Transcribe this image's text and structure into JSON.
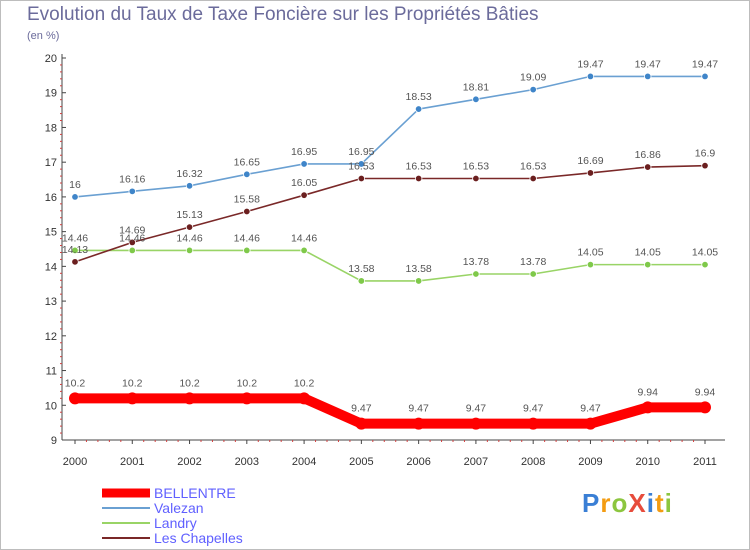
{
  "title": "Evolution du Taux de Taxe Foncière sur les Propriétés Bâties",
  "unit": "(en %)",
  "logo": {
    "text": "ProXiti",
    "letters": [
      {
        "ch": "P",
        "color": "#3a7fd5"
      },
      {
        "ch": "r",
        "color": "#f39c12"
      },
      {
        "ch": "o",
        "color": "#8cc63f"
      },
      {
        "ch": "X",
        "color": "#e74c3c"
      },
      {
        "ch": "i",
        "color": "#3a7fd5"
      },
      {
        "ch": "t",
        "color": "#f39c12"
      },
      {
        "ch": "i",
        "color": "#8cc63f"
      }
    ]
  },
  "chart_data": {
    "type": "line",
    "title": "Evolution du Taux de Taxe Foncière sur les Propriétés Bâties",
    "ylabel": "(en %)",
    "xlabel": "",
    "ylim": [
      9,
      20
    ],
    "yticks": [
      "9",
      "10",
      "11",
      "12",
      "13",
      "14",
      "15",
      "16",
      "17",
      "18",
      "19",
      "20"
    ],
    "categories": [
      "2000",
      "2001",
      "2002",
      "2003",
      "2004",
      "2005",
      "2006",
      "2007",
      "2008",
      "2009",
      "2010",
      "2011"
    ],
    "grid": false,
    "legend_position": "bottom-left",
    "series": [
      {
        "name": "BELLENTRE",
        "color": "#ff0000",
        "label_color": "#6060ff",
        "bold": true,
        "values": [
          10.2,
          10.2,
          10.2,
          10.2,
          10.2,
          9.47,
          9.47,
          9.47,
          9.47,
          9.47,
          9.94,
          9.94
        ],
        "labels": [
          "10.2",
          "10.2",
          "10.2",
          "10.2",
          "10.2",
          "9.47",
          "9.47",
          "9.47",
          "9.47",
          "9.47",
          "9.94",
          "9.94"
        ]
      },
      {
        "name": "Valezan",
        "color": "#6aa0d2",
        "marker": "#3f85c9",
        "label_color": "#6060ff",
        "bold": false,
        "values": [
          16,
          16.16,
          16.32,
          16.65,
          16.95,
          16.95,
          18.53,
          18.81,
          19.09,
          19.47,
          19.47,
          19.47
        ],
        "labels": [
          "16",
          "16.16",
          "16.32",
          "16.65",
          "16.95",
          "16.95",
          "18.53",
          "18.81",
          "19.09",
          "19.47",
          "19.47",
          "19.47"
        ]
      },
      {
        "name": "Landry",
        "color": "#99d466",
        "marker": "#7fc94a",
        "label_color": "#6060ff",
        "bold": false,
        "values": [
          14.46,
          14.46,
          14.46,
          14.46,
          14.46,
          13.58,
          13.58,
          13.78,
          13.78,
          14.05,
          14.05,
          14.05
        ],
        "labels": [
          "14.46",
          "14.46",
          "14.46",
          "14.46",
          "14.46",
          "13.58",
          "13.58",
          "13.78",
          "13.78",
          "14.05",
          "14.05",
          "14.05"
        ]
      },
      {
        "name": "Les Chapelles",
        "color": "#7a2828",
        "marker": "#6b1f1f",
        "label_color": "#6060ff",
        "bold": false,
        "values": [
          14.13,
          14.69,
          15.13,
          15.58,
          16.05,
          16.53,
          16.53,
          16.53,
          16.53,
          16.69,
          16.86,
          16.9
        ],
        "labels": [
          "14.13",
          "14.69",
          "15.13",
          "15.58",
          "16.05",
          "16.53",
          "16.53",
          "16.53",
          "16.53",
          "16.69",
          "16.86",
          "16.9"
        ]
      }
    ]
  }
}
